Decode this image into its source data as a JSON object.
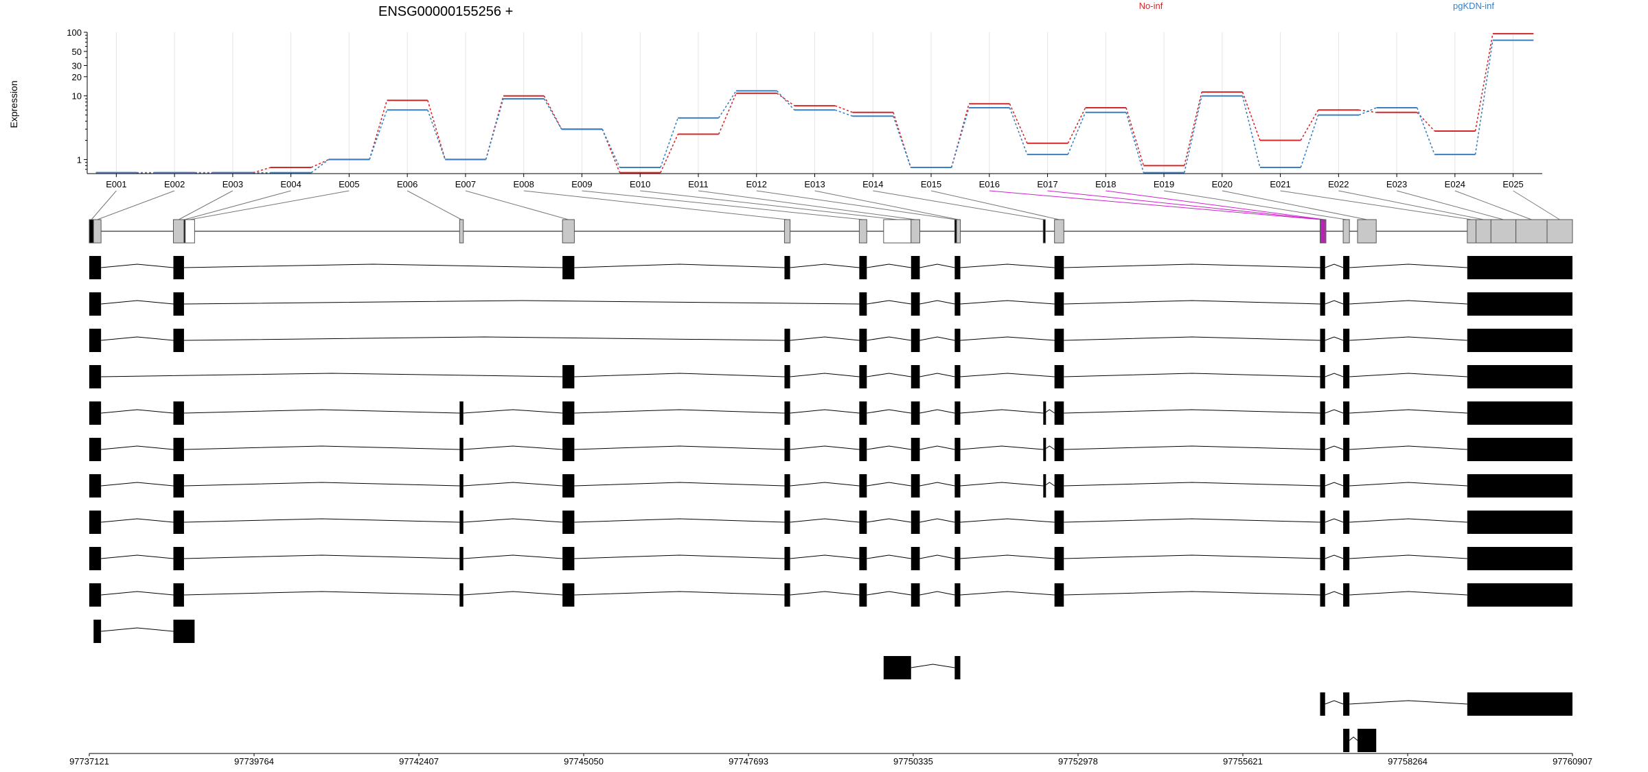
{
  "title": "ENSG00000155256 +",
  "legend": [
    {
      "name": "No-inf",
      "color": "#d62728"
    },
    {
      "name": "pgKDN-inf",
      "color": "#3a7fc1"
    }
  ],
  "colors": {
    "exon_gray": "#c8c8c8",
    "exon_black": "#000000",
    "highlight": "#cc22cc",
    "grid": "#e4e4e4"
  },
  "chart_data": {
    "type": "line",
    "ylabel": "Expression",
    "yscale": "log",
    "yticks": [
      "1",
      "10",
      "20",
      "30",
      "50",
      "100"
    ],
    "ylim": [
      0.6,
      100
    ],
    "categories": [
      "E001",
      "E002",
      "E003",
      "E004",
      "E005",
      "E006",
      "E007",
      "E008",
      "E009",
      "E010",
      "E011",
      "E012",
      "E013",
      "E014",
      "E015",
      "E016",
      "E017",
      "E018",
      "E019",
      "E020",
      "E021",
      "E022",
      "E023",
      "E024",
      "E025"
    ],
    "series": [
      {
        "name": "No-inf",
        "values": [
          0.62,
          0.62,
          0.62,
          0.75,
          1.0,
          8.5,
          1.0,
          10.0,
          3.0,
          0.62,
          2.5,
          11.0,
          7.0,
          5.5,
          0.75,
          7.5,
          1.8,
          6.5,
          0.8,
          11.5,
          2.0,
          6.0,
          5.5,
          2.8,
          95
        ]
      },
      {
        "name": "pgKDN-inf",
        "values": [
          0.62,
          0.62,
          0.62,
          0.62,
          1.0,
          6.0,
          1.0,
          9.0,
          3.0,
          0.75,
          4.5,
          12.0,
          6.0,
          4.8,
          0.75,
          6.5,
          1.2,
          5.5,
          0.62,
          10.0,
          0.75,
          5.0,
          6.5,
          1.2,
          75
        ]
      }
    ],
    "genomic_axis": [
      "97737121",
      "97739764",
      "97742407",
      "97745050",
      "97747693",
      "97750335",
      "97752978",
      "97755621",
      "97758264",
      "97760907"
    ]
  },
  "gene_model": {
    "exons": [
      {
        "id": "E001",
        "start": 97737121,
        "end": 97737190,
        "color": "black"
      },
      {
        "id": "E002",
        "start": 97737190,
        "end": 97737310,
        "color": "gray"
      },
      {
        "id": "E003",
        "start": 97738470,
        "end": 97738640,
        "color": "gray"
      },
      {
        "id": "E004",
        "start": 97738640,
        "end": 97738660,
        "color": "black"
      },
      {
        "id": "E005",
        "start": 97738660,
        "end": 97738810,
        "color": "white"
      },
      {
        "id": "E006",
        "start": 97743060,
        "end": 97743120,
        "color": "gray"
      },
      {
        "id": "E007",
        "start": 97744710,
        "end": 97744900,
        "color": "gray"
      },
      {
        "id": "E008",
        "start": 97748270,
        "end": 97748360,
        "color": "gray"
      },
      {
        "id": "E009",
        "start": 97749470,
        "end": 97749590,
        "color": "gray"
      },
      {
        "id": "E010",
        "start": 97749860,
        "end": 97750300,
        "color": "white"
      },
      {
        "id": "E011",
        "start": 97750300,
        "end": 97750440,
        "color": "gray"
      },
      {
        "id": "E012",
        "start": 97751000,
        "end": 97751030,
        "color": "black"
      },
      {
        "id": "E013",
        "start": 97751030,
        "end": 97751090,
        "color": "gray"
      },
      {
        "id": "E014",
        "start": 97752420,
        "end": 97752440,
        "color": "black"
      },
      {
        "id": "E015",
        "start": 97752600,
        "end": 97752750,
        "color": "gray"
      },
      {
        "id": "E016",
        "start": 97756860,
        "end": 97756890,
        "color": "highlight"
      },
      {
        "id": "E017",
        "start": 97756890,
        "end": 97756920,
        "color": "highlight"
      },
      {
        "id": "E018",
        "start": 97756920,
        "end": 97756940,
        "color": "highlight"
      },
      {
        "id": "E019",
        "start": 97757230,
        "end": 97757330,
        "color": "gray"
      },
      {
        "id": "E020",
        "start": 97757460,
        "end": 97757760,
        "color": "gray"
      },
      {
        "id": "E021",
        "start": 97759220,
        "end": 97759360,
        "color": "gray"
      },
      {
        "id": "E022",
        "start": 97759360,
        "end": 97759600,
        "color": "gray"
      },
      {
        "id": "E023",
        "start": 97759600,
        "end": 97760000,
        "color": "gray"
      },
      {
        "id": "E024",
        "start": 97760000,
        "end": 97760500,
        "color": "gray"
      },
      {
        "id": "E025",
        "start": 97760500,
        "end": 97760907,
        "color": "gray"
      }
    ],
    "transcripts": [
      [
        [
          97737121,
          97737310
        ],
        [
          97738470,
          97738640
        ],
        [
          97744710,
          97744900
        ],
        [
          97748270,
          97748360
        ],
        [
          97749470,
          97749590
        ],
        [
          97750300,
          97750440
        ],
        [
          97751000,
          97751090
        ],
        [
          97752600,
          97752750
        ],
        [
          97756860,
          97756940
        ],
        [
          97757230,
          97757330
        ],
        [
          97759220,
          97760907
        ]
      ],
      [
        [
          97737121,
          97737310
        ],
        [
          97738470,
          97738640
        ],
        [
          97749470,
          97749590
        ],
        [
          97750300,
          97750440
        ],
        [
          97751000,
          97751090
        ],
        [
          97752600,
          97752750
        ],
        [
          97756860,
          97756940
        ],
        [
          97757230,
          97757330
        ],
        [
          97759220,
          97760907
        ]
      ],
      [
        [
          97737121,
          97737310
        ],
        [
          97738470,
          97738640
        ],
        [
          97748270,
          97748360
        ],
        [
          97749470,
          97749590
        ],
        [
          97750300,
          97750440
        ],
        [
          97751000,
          97751090
        ],
        [
          97752600,
          97752750
        ],
        [
          97756860,
          97756940
        ],
        [
          97757230,
          97757330
        ],
        [
          97759220,
          97760907
        ]
      ],
      [
        [
          97737121,
          97737310
        ],
        [
          97744710,
          97744900
        ],
        [
          97748270,
          97748360
        ],
        [
          97749470,
          97749590
        ],
        [
          97750300,
          97750440
        ],
        [
          97751000,
          97751090
        ],
        [
          97752600,
          97752750
        ],
        [
          97756860,
          97756940
        ],
        [
          97757230,
          97757330
        ],
        [
          97759220,
          97760907
        ]
      ],
      [
        [
          97737121,
          97737310
        ],
        [
          97738470,
          97738640
        ],
        [
          97743060,
          97743120
        ],
        [
          97744710,
          97744900
        ],
        [
          97748270,
          97748360
        ],
        [
          97749470,
          97749590
        ],
        [
          97750300,
          97750440
        ],
        [
          97751000,
          97751090
        ],
        [
          97752420,
          97752440
        ],
        [
          97752600,
          97752750
        ],
        [
          97756860,
          97756940
        ],
        [
          97757230,
          97757330
        ],
        [
          97759220,
          97760907
        ]
      ],
      [
        [
          97737121,
          97737310
        ],
        [
          97738470,
          97738640
        ],
        [
          97743060,
          97743120
        ],
        [
          97744710,
          97744900
        ],
        [
          97748270,
          97748360
        ],
        [
          97749470,
          97749590
        ],
        [
          97750300,
          97750440
        ],
        [
          97751000,
          97751090
        ],
        [
          97752420,
          97752440
        ],
        [
          97752600,
          97752750
        ],
        [
          97756860,
          97756940
        ],
        [
          97757230,
          97757330
        ],
        [
          97759220,
          97760907
        ]
      ],
      [
        [
          97737121,
          97737310
        ],
        [
          97738470,
          97738640
        ],
        [
          97743060,
          97743120
        ],
        [
          97744710,
          97744900
        ],
        [
          97748270,
          97748360
        ],
        [
          97749470,
          97749590
        ],
        [
          97750300,
          97750440
        ],
        [
          97751000,
          97751090
        ],
        [
          97752420,
          97752440
        ],
        [
          97752600,
          97752750
        ],
        [
          97756860,
          97756940
        ],
        [
          97757230,
          97757330
        ],
        [
          97759220,
          97760907
        ]
      ],
      [
        [
          97737121,
          97737310
        ],
        [
          97738470,
          97738640
        ],
        [
          97743060,
          97743120
        ],
        [
          97744710,
          97744900
        ],
        [
          97748270,
          97748360
        ],
        [
          97749470,
          97749590
        ],
        [
          97750300,
          97750440
        ],
        [
          97751000,
          97751090
        ],
        [
          97752600,
          97752750
        ],
        [
          97756860,
          97756940
        ],
        [
          97757230,
          97757330
        ],
        [
          97759220,
          97760907
        ]
      ],
      [
        [
          97737121,
          97737310
        ],
        [
          97738470,
          97738640
        ],
        [
          97743060,
          97743120
        ],
        [
          97744710,
          97744900
        ],
        [
          97748270,
          97748360
        ],
        [
          97749470,
          97749590
        ],
        [
          97750300,
          97750440
        ],
        [
          97751000,
          97751090
        ],
        [
          97752600,
          97752750
        ],
        [
          97756860,
          97756940
        ],
        [
          97757230,
          97757330
        ],
        [
          97759220,
          97760907
        ]
      ],
      [
        [
          97737121,
          97737310
        ],
        [
          97738470,
          97738640
        ],
        [
          97743060,
          97743120
        ],
        [
          97744710,
          97744900
        ],
        [
          97748270,
          97748360
        ],
        [
          97749470,
          97749590
        ],
        [
          97750300,
          97750440
        ],
        [
          97751000,
          97751090
        ],
        [
          97752600,
          97752750
        ],
        [
          97756860,
          97756940
        ],
        [
          97757230,
          97757330
        ],
        [
          97759220,
          97760907
        ]
      ],
      [
        [
          97737190,
          97737310
        ],
        [
          97738470,
          97738810
        ]
      ],
      [
        [
          97749860,
          97750300
        ],
        [
          97751000,
          97751090
        ]
      ],
      [
        [
          97756860,
          97756940
        ],
        [
          97757230,
          97757330
        ],
        [
          97759220,
          97760907
        ]
      ],
      [
        [
          97757230,
          97757330
        ],
        [
          97757460,
          97757760
        ]
      ]
    ]
  }
}
